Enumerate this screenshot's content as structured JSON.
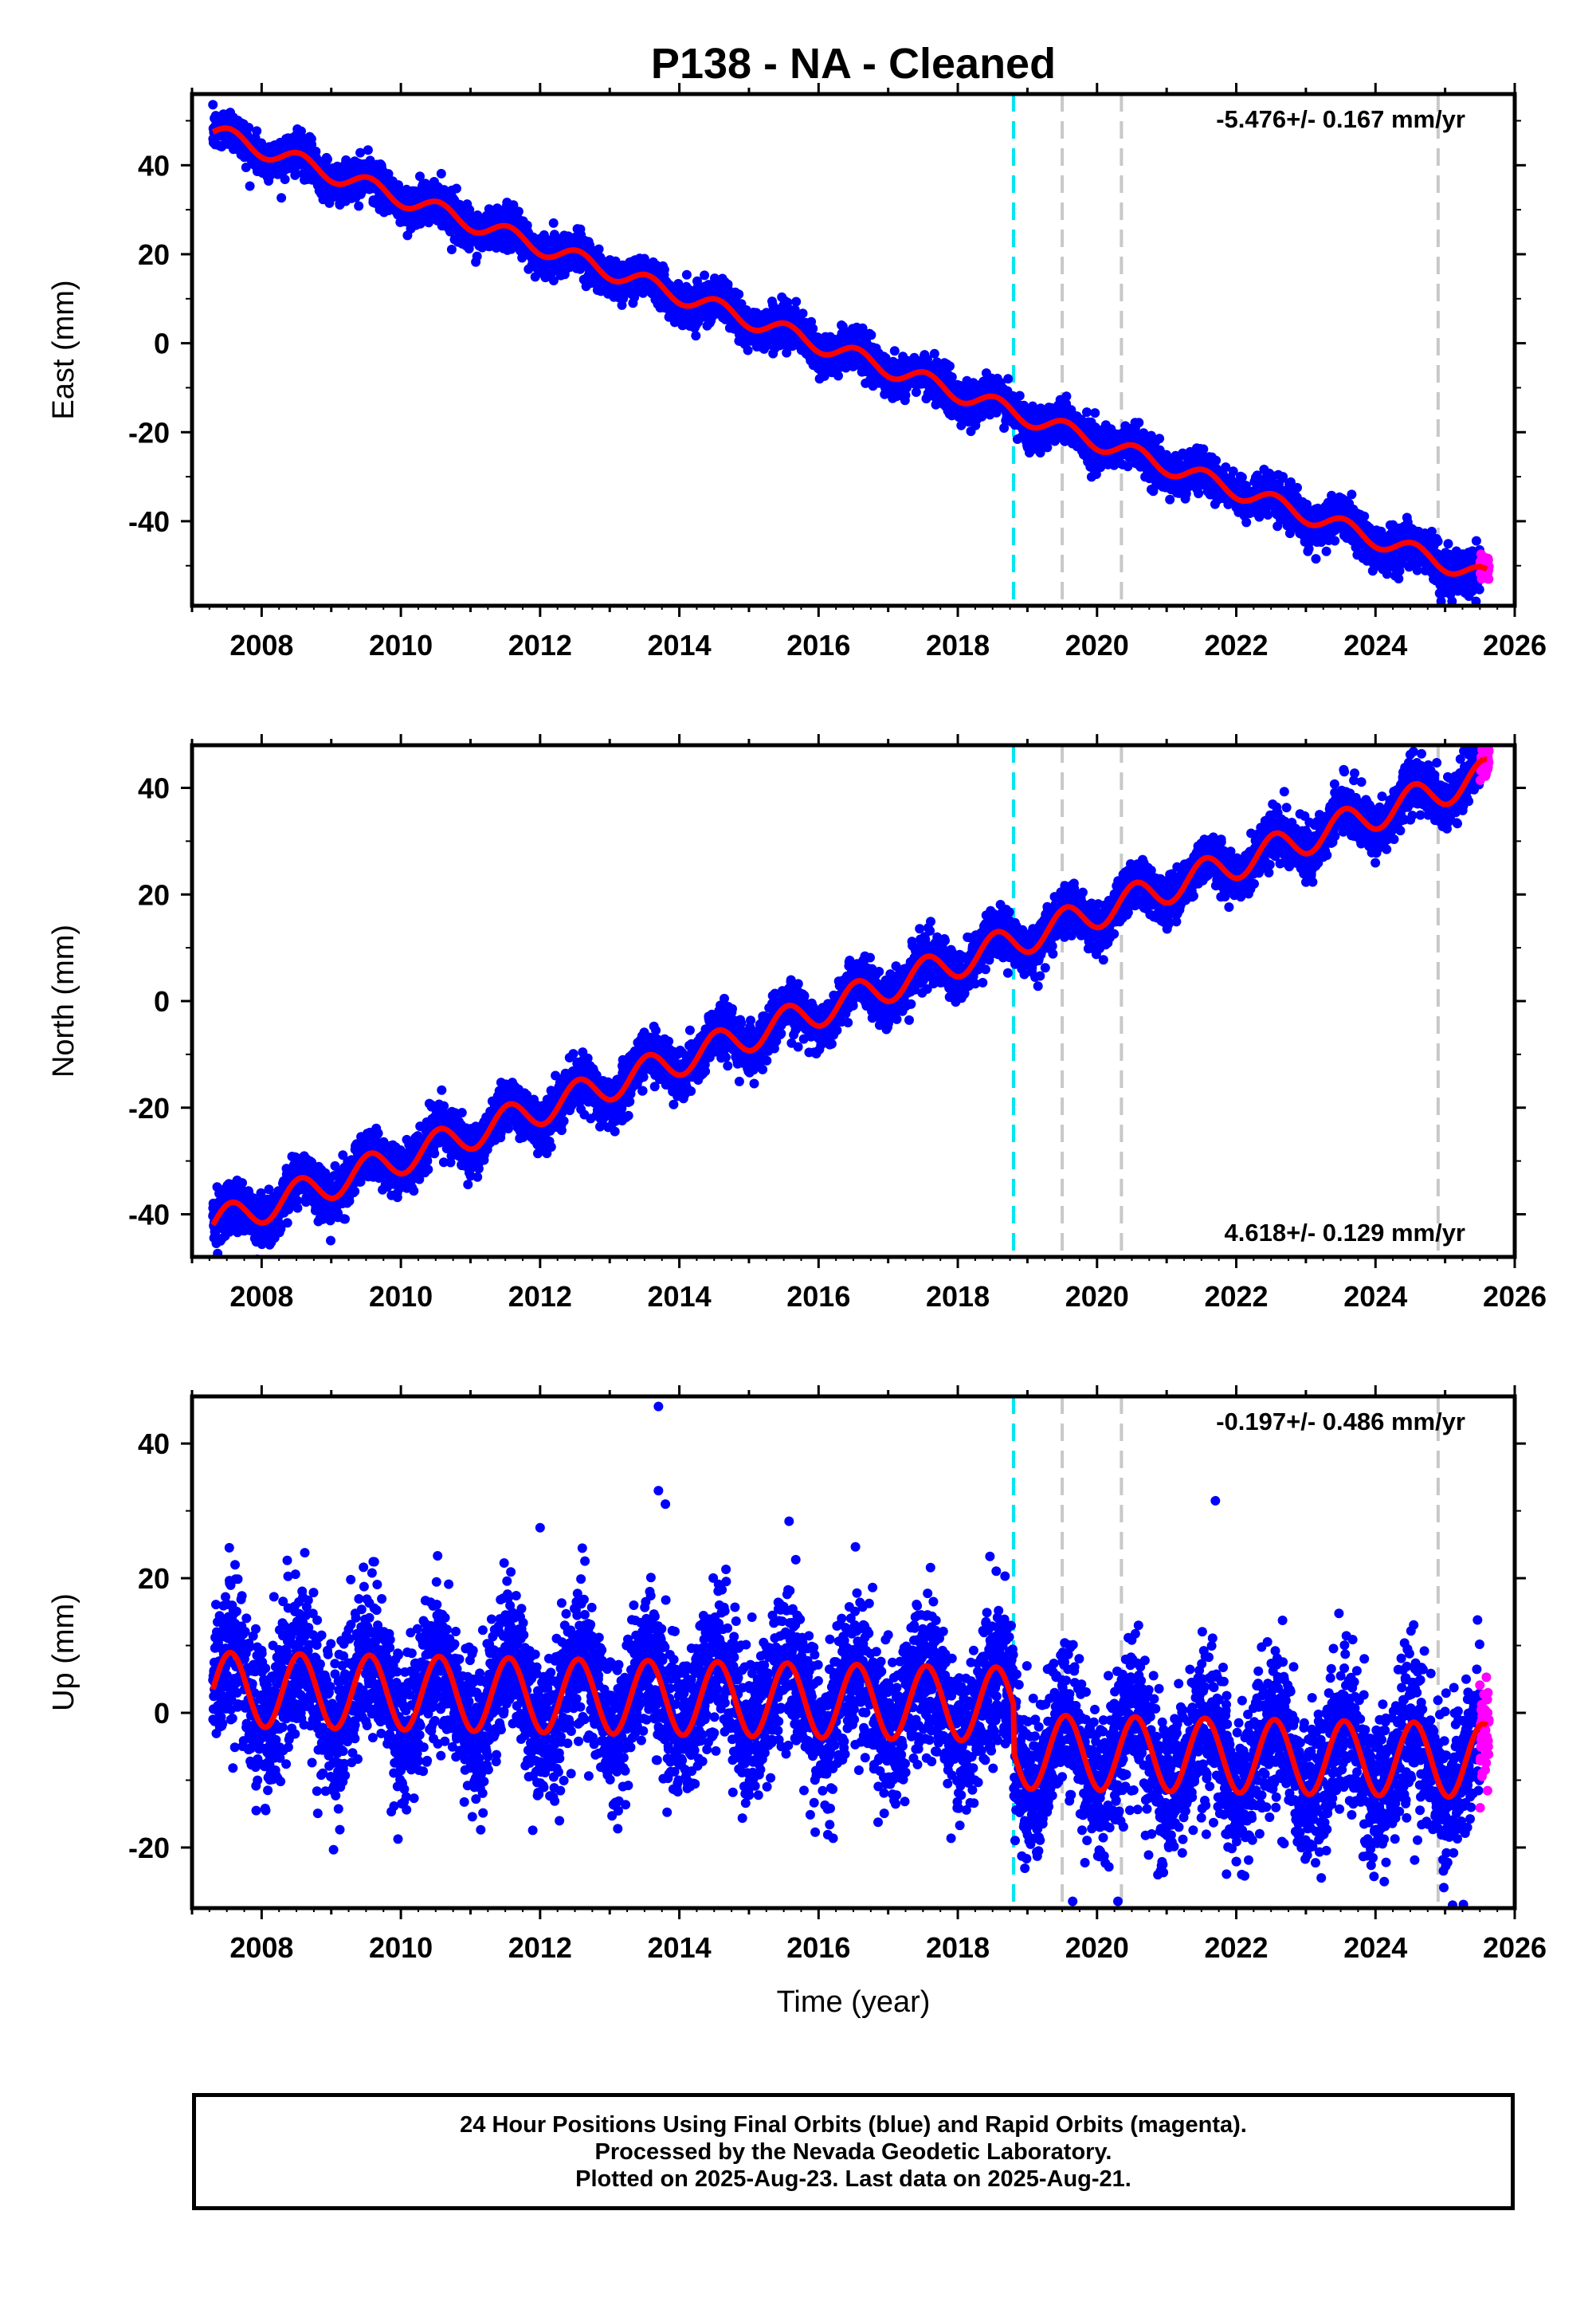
{
  "chart_data": [
    {
      "type": "scatter",
      "title": "P138  - NA - Cleaned",
      "xlabel": "",
      "ylabel": "East (mm)",
      "xlim": [
        2007.0,
        2026.0
      ],
      "ylim": [
        -59,
        56
      ],
      "xticks": [
        "2008",
        "2010",
        "2012",
        "2014",
        "2016",
        "2018",
        "2020",
        "2022",
        "2024",
        "2026"
      ],
      "yticks": [
        "-40",
        "-20",
        "0",
        "20",
        "40"
      ],
      "rate_label": "-5.476+/- 0.167 mm/yr",
      "rate_position": "top-right",
      "trend": {
        "start_year": 2007.3,
        "end_year": 2025.6,
        "start_value": 47.5,
        "rate": -5.476,
        "annual_amplitude": 2.0
      },
      "vertical_lines": [
        {
          "x": 2018.8,
          "color": "#00e5ee",
          "style": "dashed"
        },
        {
          "x": 2019.5,
          "color": "#c8c8c8",
          "style": "dashed"
        },
        {
          "x": 2020.35,
          "color": "#c8c8c8",
          "style": "dashed"
        },
        {
          "x": 2024.9,
          "color": "#c8c8c8",
          "style": "dashed"
        }
      ],
      "series": [
        {
          "name": "Final Orbits",
          "color": "#0000ff",
          "marker": "dot",
          "x_range": [
            2007.3,
            2025.5
          ]
        },
        {
          "name": "Rapid Orbits",
          "color": "#ff00ff",
          "marker": "dot",
          "x_range": [
            2025.5,
            2025.63
          ]
        },
        {
          "name": "Model fit",
          "color": "#ff0000",
          "line": true
        }
      ]
    },
    {
      "type": "scatter",
      "title": "",
      "xlabel": "",
      "ylabel": "North (mm)",
      "xlim": [
        2007.0,
        2026.0
      ],
      "ylim": [
        -48,
        48
      ],
      "xticks": [
        "2008",
        "2010",
        "2012",
        "2014",
        "2016",
        "2018",
        "2020",
        "2022",
        "2024",
        "2026"
      ],
      "yticks": [
        "-40",
        "-20",
        "0",
        "20",
        "40"
      ],
      "rate_label": "4.618+/- 0.129 mm/yr",
      "rate_position": "bottom-right",
      "trend": {
        "start_year": 2007.3,
        "end_year": 2025.6,
        "start_value": -42.0,
        "rate": 4.618,
        "annual_amplitude": 3.0
      },
      "vertical_lines": [
        {
          "x": 2018.8,
          "color": "#00e5ee",
          "style": "dashed"
        },
        {
          "x": 2019.5,
          "color": "#c8c8c8",
          "style": "dashed"
        },
        {
          "x": 2020.35,
          "color": "#c8c8c8",
          "style": "dashed"
        },
        {
          "x": 2024.9,
          "color": "#c8c8c8",
          "style": "dashed"
        }
      ],
      "series": [
        {
          "name": "Final Orbits",
          "color": "#0000ff",
          "marker": "dot",
          "x_range": [
            2007.3,
            2025.5
          ]
        },
        {
          "name": "Rapid Orbits",
          "color": "#ff00ff",
          "marker": "dot",
          "x_range": [
            2025.5,
            2025.63
          ]
        },
        {
          "name": "Model fit",
          "color": "#ff0000",
          "line": true
        }
      ]
    },
    {
      "type": "scatter",
      "title": "",
      "xlabel": "Time (year)",
      "ylabel": "Up (mm)",
      "xlim": [
        2007.0,
        2026.0
      ],
      "ylim": [
        -29,
        47
      ],
      "xticks": [
        "2008",
        "2010",
        "2012",
        "2014",
        "2016",
        "2018",
        "2020",
        "2022",
        "2024",
        "2026"
      ],
      "yticks": [
        "-20",
        "0",
        "20",
        "40"
      ],
      "rate_label": "-0.197+/- 0.486 mm/yr",
      "rate_position": "top-right",
      "trend": {
        "start_year": 2007.3,
        "end_year": 2025.6,
        "start_value": 3.5,
        "rate": -0.197,
        "annual_amplitude": 5.5,
        "offset_at": 2018.8,
        "offset": -7.0
      },
      "outliers": [
        [
          2013.7,
          45.5
        ],
        [
          2013.7,
          33
        ],
        [
          2013.8,
          31
        ],
        [
          2012.0,
          27.5
        ],
        [
          2021.7,
          31.5
        ],
        [
          2019.65,
          -28
        ],
        [
          2020.3,
          -28
        ]
      ],
      "vertical_lines": [
        {
          "x": 2018.8,
          "color": "#00e5ee",
          "style": "dashed"
        },
        {
          "x": 2019.5,
          "color": "#c8c8c8",
          "style": "dashed"
        },
        {
          "x": 2020.35,
          "color": "#c8c8c8",
          "style": "dashed"
        },
        {
          "x": 2024.9,
          "color": "#c8c8c8",
          "style": "dashed"
        }
      ],
      "series": [
        {
          "name": "Final Orbits",
          "color": "#0000ff",
          "marker": "dot",
          "x_range": [
            2007.3,
            2025.5
          ]
        },
        {
          "name": "Rapid Orbits",
          "color": "#ff00ff",
          "marker": "dot",
          "x_range": [
            2025.5,
            2025.63
          ]
        },
        {
          "name": "Model fit",
          "color": "#ff0000",
          "line": true
        }
      ]
    }
  ],
  "caption": {
    "line1": "24 Hour Positions Using Final Orbits (blue) and Rapid Orbits (magenta).",
    "line2": "Processed by the Nevada Geodetic Laboratory.",
    "line3": "Plotted on 2025-Aug-23. Last data on 2025-Aug-21."
  }
}
